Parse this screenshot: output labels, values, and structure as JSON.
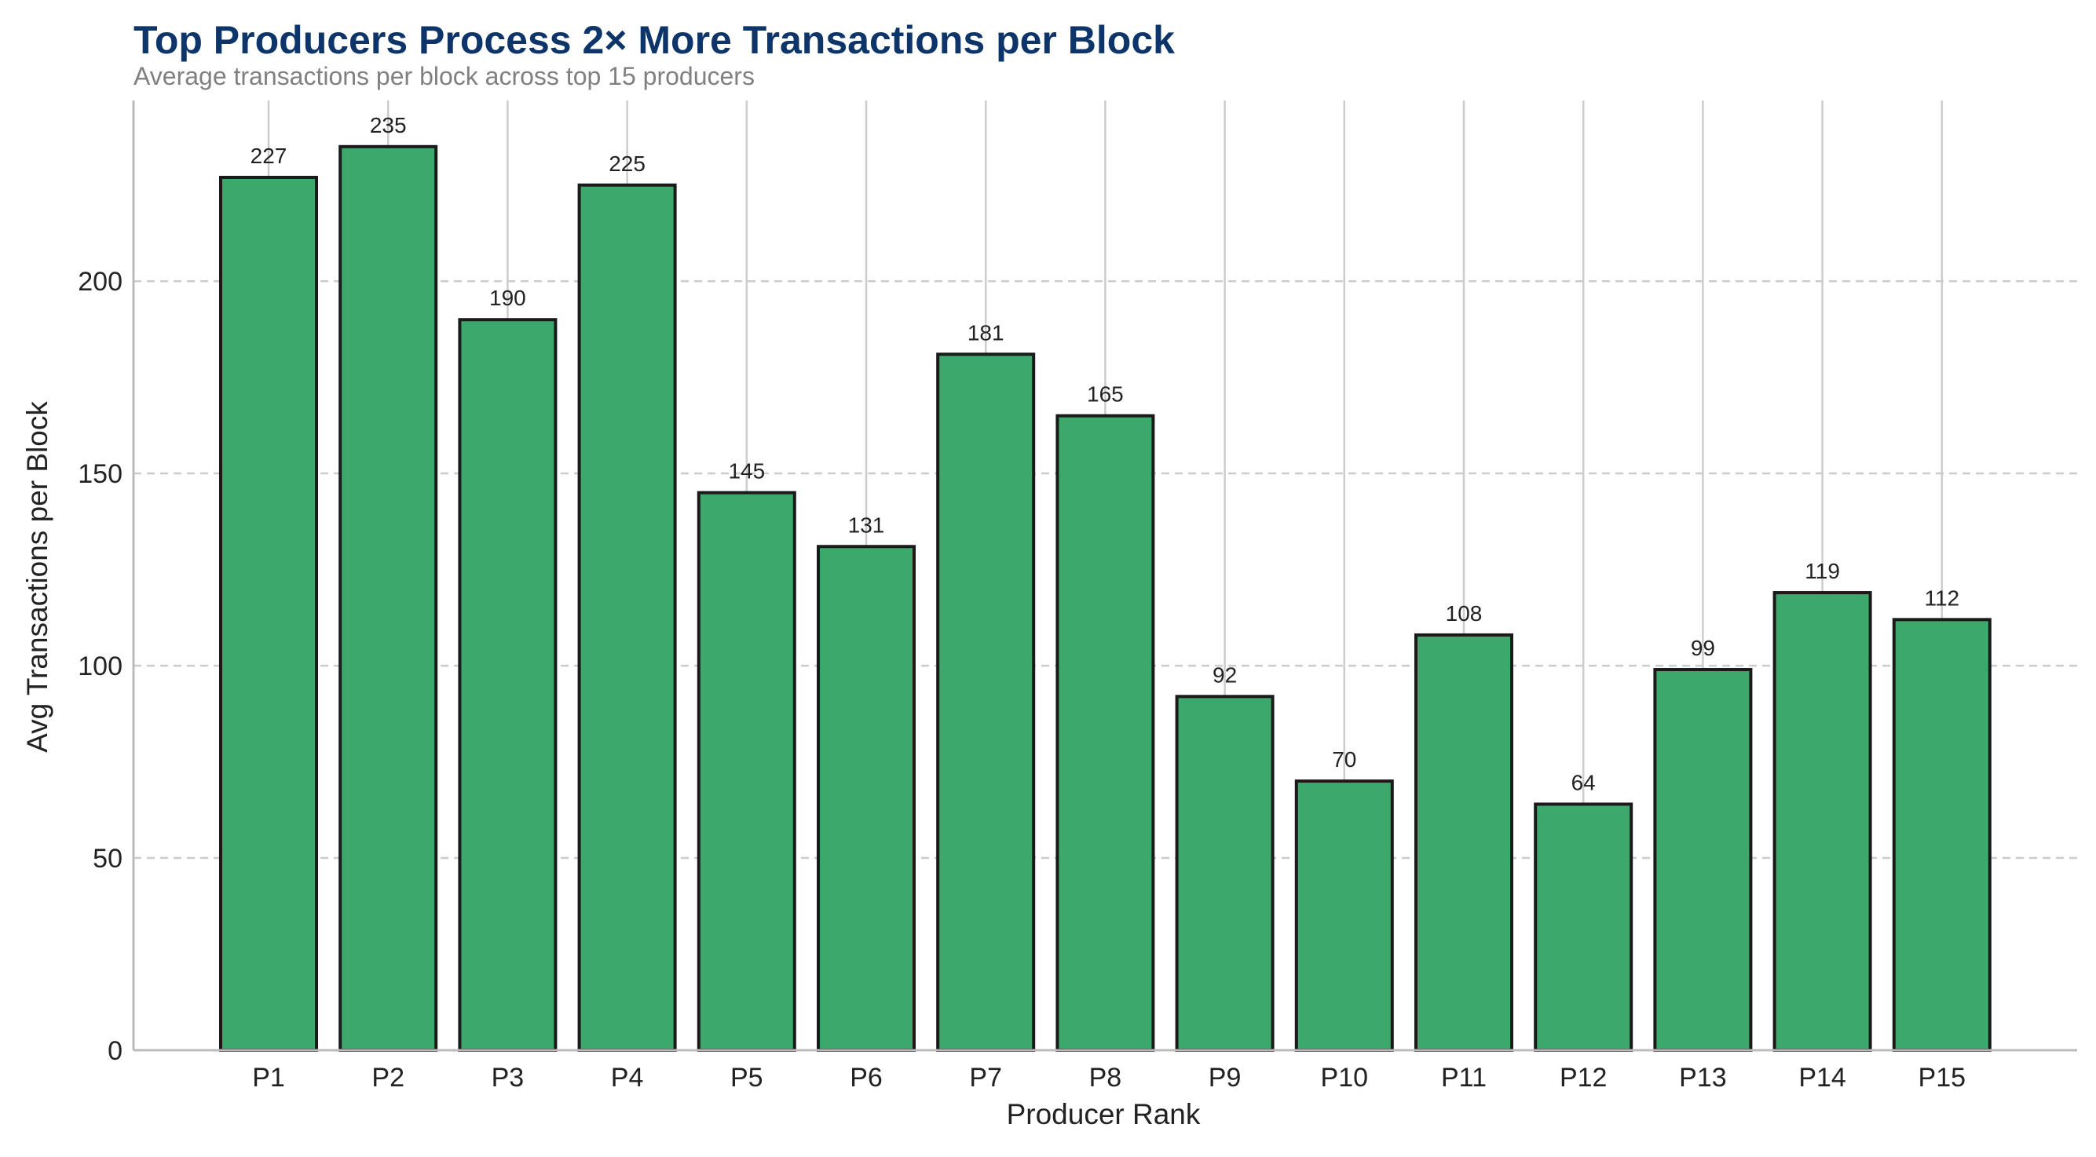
{
  "colors": {
    "bar_fill": "#3ca86b",
    "bar_edge": "#1a1a1a",
    "title": "#0d3569",
    "subtitle": "#808080",
    "grid": "#cccccc",
    "axis": "#bbbbbb"
  },
  "chart_data": {
    "type": "bar",
    "title": "Top Producers Process 2× More Transactions per Block",
    "subtitle": "Average transactions per block across top 15 producers",
    "xlabel": "Producer Rank",
    "ylabel": "Avg Transactions per Block",
    "categories": [
      "P1",
      "P2",
      "P3",
      "P4",
      "P5",
      "P6",
      "P7",
      "P8",
      "P9",
      "P10",
      "P11",
      "P12",
      "P13",
      "P14",
      "P15"
    ],
    "values": [
      227,
      235,
      190,
      225,
      145,
      131,
      181,
      165,
      92,
      70,
      108,
      64,
      99,
      119,
      112
    ],
    "data_labels": [
      "227",
      "235",
      "190",
      "225",
      "145",
      "131",
      "181",
      "165",
      "92",
      "70",
      "108",
      "64",
      "99",
      "119",
      "112"
    ],
    "ylim": [
      0,
      247
    ],
    "yticks": [
      0,
      50,
      100,
      150,
      200
    ],
    "grid": {
      "horizontal": true,
      "horizontal_style": "dashed",
      "vertical": true
    },
    "legend": "none"
  }
}
